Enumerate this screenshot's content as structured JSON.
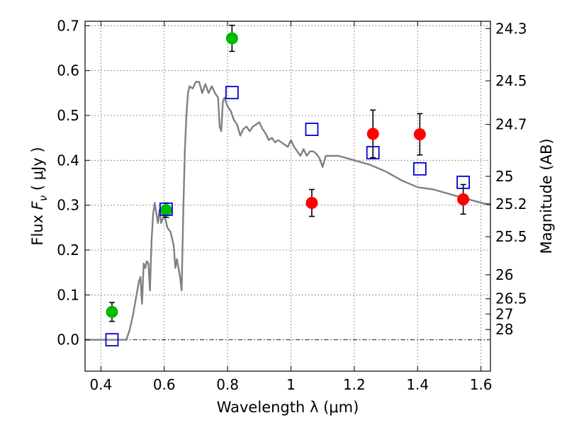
{
  "chart_data": {
    "type": "scatter",
    "title": "",
    "xlabel": "Wavelength  λ (μm)",
    "ylabel_parts": [
      "Flux  ",
      "F",
      "ν",
      "  ( μJy )"
    ],
    "y2label": "Magnitude (AB)",
    "xlim": [
      0.35,
      1.63
    ],
    "ylim": [
      -0.07,
      0.71
    ],
    "xticks": [
      0.4,
      0.6,
      0.8,
      1.0,
      1.2,
      1.4,
      1.6
    ],
    "xtick_labels": [
      "0.4",
      "0.6",
      "0.8",
      "1",
      "1.2",
      "1.4",
      "1.6"
    ],
    "yticks": [
      0.0,
      0.1,
      0.2,
      0.3,
      0.4,
      0.5,
      0.6,
      0.7
    ],
    "ytick_labels": [
      "0.0",
      "0.1",
      "0.2",
      "0.3",
      "0.4",
      "0.5",
      "0.6",
      "0.7"
    ],
    "y2ticks": [
      {
        "label": "24.3",
        "flux": 0.6938
      },
      {
        "label": "24.5",
        "flux": 0.5772
      },
      {
        "label": "24.7",
        "flux": 0.4801
      },
      {
        "label": "25",
        "flux": 0.3642
      },
      {
        "label": "25.2",
        "flux": 0.3029
      },
      {
        "label": "25.5",
        "flux": 0.2298
      },
      {
        "label": "26",
        "flux": 0.145
      },
      {
        "label": "26.5",
        "flux": 0.0915
      },
      {
        "label": "27",
        "flux": 0.0575
      },
      {
        "label": "28",
        "flux": 0.0229
      }
    ],
    "grid": true,
    "zero_line": true,
    "series": [
      {
        "name": "model-sed",
        "kind": "line",
        "color": "#808080",
        "points": [
          [
            0.35,
            0.0
          ],
          [
            0.48,
            0.0
          ],
          [
            0.49,
            0.02
          ],
          [
            0.5,
            0.05
          ],
          [
            0.51,
            0.09
          ],
          [
            0.52,
            0.13
          ],
          [
            0.525,
            0.14
          ],
          [
            0.53,
            0.08
          ],
          [
            0.535,
            0.17
          ],
          [
            0.54,
            0.16
          ],
          [
            0.545,
            0.175
          ],
          [
            0.55,
            0.17
          ],
          [
            0.555,
            0.11
          ],
          [
            0.56,
            0.22
          ],
          [
            0.565,
            0.28
          ],
          [
            0.57,
            0.305
          ],
          [
            0.58,
            0.26
          ],
          [
            0.585,
            0.29
          ],
          [
            0.59,
            0.26
          ],
          [
            0.6,
            0.28
          ],
          [
            0.61,
            0.25
          ],
          [
            0.62,
            0.24
          ],
          [
            0.63,
            0.21
          ],
          [
            0.635,
            0.16
          ],
          [
            0.64,
            0.18
          ],
          [
            0.645,
            0.16
          ],
          [
            0.65,
            0.14
          ],
          [
            0.655,
            0.11
          ],
          [
            0.66,
            0.28
          ],
          [
            0.665,
            0.42
          ],
          [
            0.67,
            0.5
          ],
          [
            0.675,
            0.55
          ],
          [
            0.68,
            0.565
          ],
          [
            0.69,
            0.56
          ],
          [
            0.7,
            0.575
          ],
          [
            0.71,
            0.575
          ],
          [
            0.72,
            0.55
          ],
          [
            0.73,
            0.57
          ],
          [
            0.74,
            0.55
          ],
          [
            0.75,
            0.565
          ],
          [
            0.76,
            0.55
          ],
          [
            0.77,
            0.54
          ],
          [
            0.775,
            0.475
          ],
          [
            0.78,
            0.465
          ],
          [
            0.785,
            0.53
          ],
          [
            0.79,
            0.54
          ],
          [
            0.8,
            0.52
          ],
          [
            0.81,
            0.51
          ],
          [
            0.82,
            0.49
          ],
          [
            0.83,
            0.48
          ],
          [
            0.84,
            0.455
          ],
          [
            0.85,
            0.47
          ],
          [
            0.86,
            0.475
          ],
          [
            0.87,
            0.465
          ],
          [
            0.88,
            0.475
          ],
          [
            0.89,
            0.48
          ],
          [
            0.9,
            0.485
          ],
          [
            0.91,
            0.47
          ],
          [
            0.92,
            0.46
          ],
          [
            0.93,
            0.445
          ],
          [
            0.94,
            0.45
          ],
          [
            0.95,
            0.44
          ],
          [
            0.96,
            0.445
          ],
          [
            0.97,
            0.44
          ],
          [
            0.98,
            0.435
          ],
          [
            0.99,
            0.43
          ],
          [
            1.0,
            0.445
          ],
          [
            1.01,
            0.43
          ],
          [
            1.02,
            0.42
          ],
          [
            1.03,
            0.41
          ],
          [
            1.04,
            0.425
          ],
          [
            1.05,
            0.41
          ],
          [
            1.06,
            0.42
          ],
          [
            1.07,
            0.42
          ],
          [
            1.08,
            0.415
          ],
          [
            1.09,
            0.405
          ],
          [
            1.1,
            0.385
          ],
          [
            1.11,
            0.41
          ],
          [
            1.12,
            0.41
          ],
          [
            1.15,
            0.41
          ],
          [
            1.2,
            0.4
          ],
          [
            1.25,
            0.39
          ],
          [
            1.3,
            0.375
          ],
          [
            1.35,
            0.355
          ],
          [
            1.4,
            0.34
          ],
          [
            1.45,
            0.335
          ],
          [
            1.5,
            0.325
          ],
          [
            1.55,
            0.315
          ],
          [
            1.63,
            0.3
          ]
        ]
      },
      {
        "name": "green-observed",
        "kind": "circle",
        "color": "#00bb00",
        "points": [
          {
            "x": 0.435,
            "y": 0.062,
            "err": 0.021
          },
          {
            "x": 0.606,
            "y": 0.289,
            "err": 0.016
          },
          {
            "x": 0.814,
            "y": 0.672,
            "err": 0.029
          }
        ]
      },
      {
        "name": "red-observed",
        "kind": "circle",
        "color": "#ff0000",
        "points": [
          {
            "x": 1.066,
            "y": 0.305,
            "err": 0.03
          },
          {
            "x": 1.259,
            "y": 0.459,
            "err": 0.053
          },
          {
            "x": 1.407,
            "y": 0.458,
            "err": 0.046
          },
          {
            "x": 1.544,
            "y": 0.313,
            "err": 0.033
          }
        ]
      },
      {
        "name": "model-photometry",
        "kind": "square",
        "color": "#0000cc",
        "points": [
          {
            "x": 0.435,
            "y": 0.0
          },
          {
            "x": 0.606,
            "y": 0.291
          },
          {
            "x": 0.814,
            "y": 0.551
          },
          {
            "x": 1.066,
            "y": 0.469
          },
          {
            "x": 1.259,
            "y": 0.417
          },
          {
            "x": 1.407,
            "y": 0.381
          },
          {
            "x": 1.544,
            "y": 0.351
          }
        ]
      }
    ]
  }
}
